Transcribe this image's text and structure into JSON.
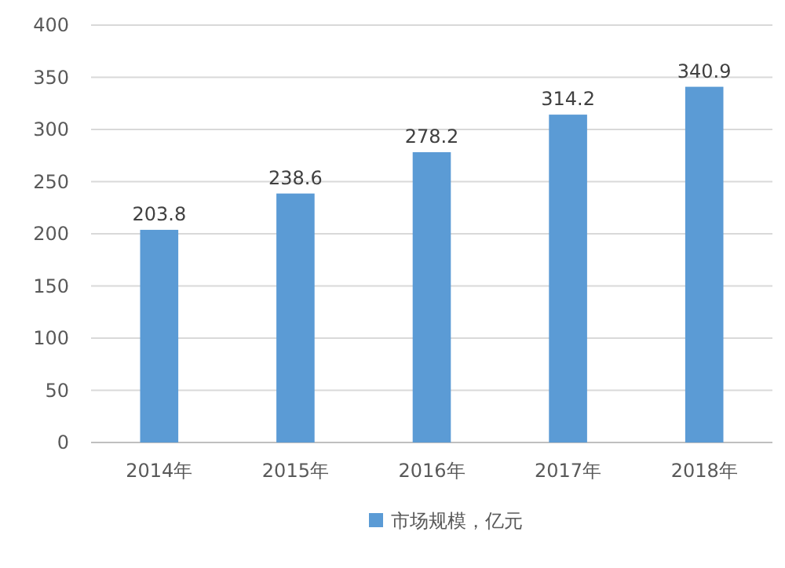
{
  "chart_data": {
    "type": "bar",
    "categories": [
      "2014年",
      "2015年",
      "2016年",
      "2017年",
      "2018年"
    ],
    "series": [
      {
        "name": "市场规模，亿元",
        "color": "#5b9bd5",
        "values": [
          203.8,
          238.6,
          278.2,
          314.2,
          340.9
        ]
      }
    ],
    "ylim": [
      0,
      400
    ],
    "yticks": [
      0,
      50,
      100,
      150,
      200,
      250,
      300,
      350,
      400
    ],
    "grid": "y",
    "data_labels": true,
    "legend": "bottom"
  }
}
